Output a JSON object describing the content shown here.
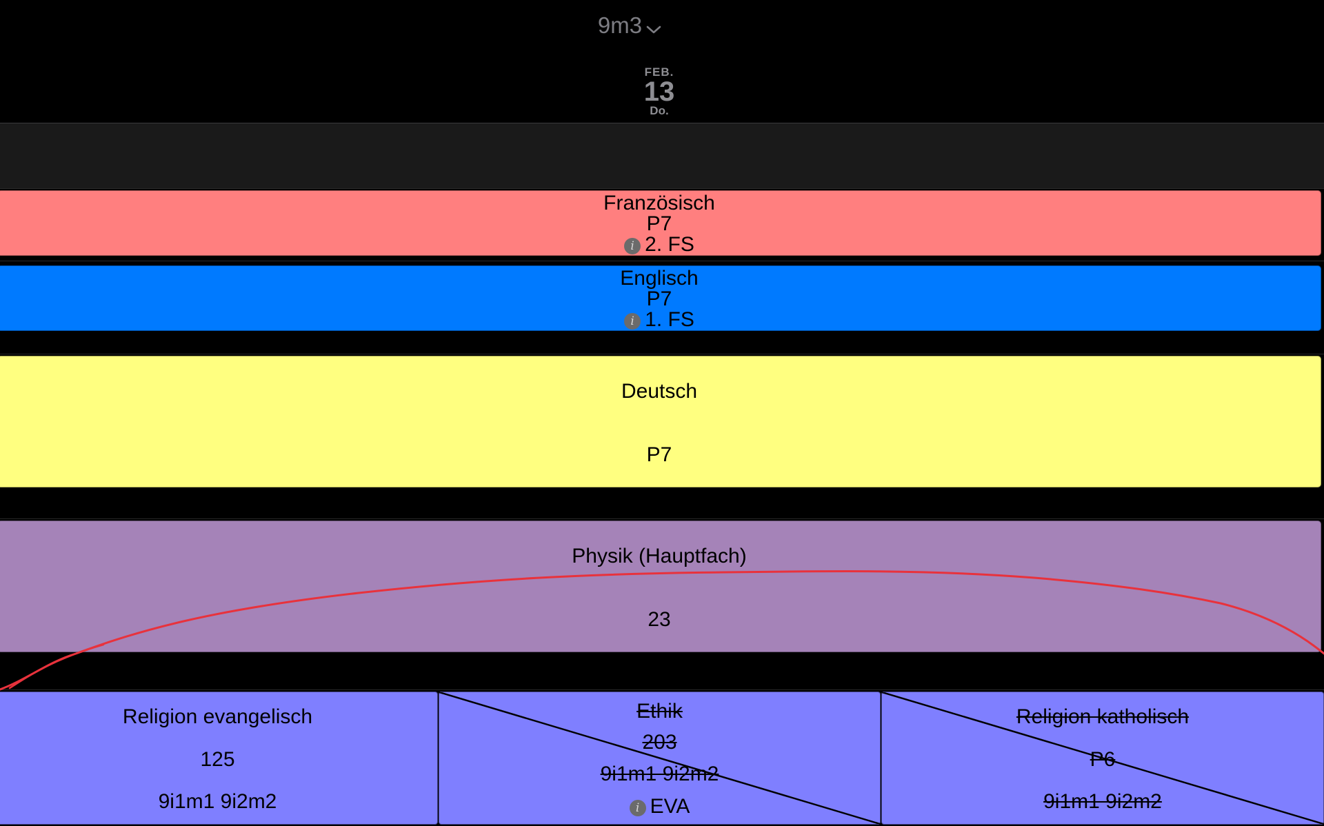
{
  "header": {
    "class_name": "9m3",
    "date": {
      "month": "FEB.",
      "day": "13",
      "weekday": "Do."
    }
  },
  "lessons": {
    "franzoesisch": {
      "subject": "Französisch",
      "room": "P7",
      "note": "2. FS",
      "color": "#ff7f7f"
    },
    "englisch": {
      "subject": "Englisch",
      "room": "P7",
      "note": "1. FS",
      "color": "#007aff"
    },
    "deutsch": {
      "subject": "Deutsch",
      "room": "P7",
      "color": "#ffff80"
    },
    "physik": {
      "subject": "Physik (Hauptfach)",
      "room": "23",
      "color": "#a583b8"
    },
    "religion_ev": {
      "subject": "Religion evangelisch",
      "room": "125",
      "groups": "9i1m1 9i2m2",
      "color": "#7f7fff"
    },
    "ethik": {
      "subject": "Ethik",
      "room": "203",
      "groups": "9i1m1 9i2m2",
      "note": "EVA",
      "cancelled": true
    },
    "religion_kath": {
      "subject": "Religion katholisch",
      "room": "P6",
      "groups": "9i1m1 9i2m2",
      "cancelled": true
    }
  },
  "icons": {
    "info": "info-icon",
    "dropdown": "chevron-down-icon"
  },
  "annotation_color": "#e8323c"
}
